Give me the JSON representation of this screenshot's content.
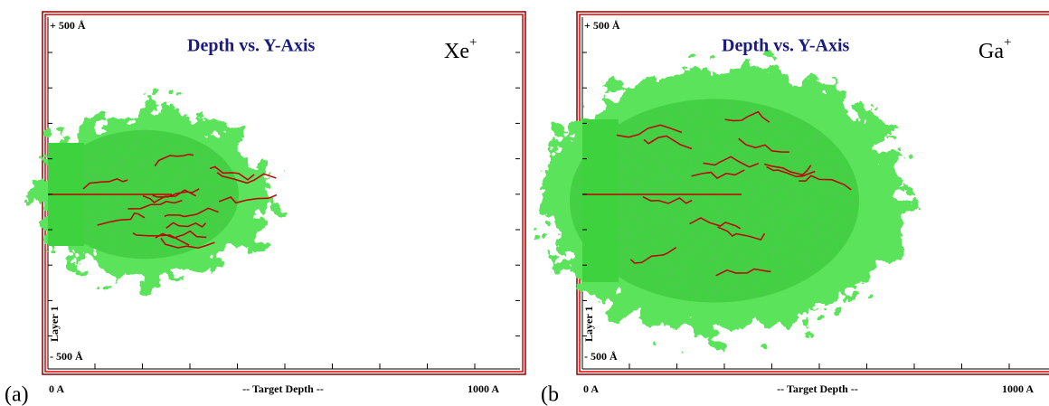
{
  "panels": [
    {
      "label": "(a)",
      "title": "Depth vs. Y-Axis",
      "ion": "Xe",
      "ion_charge": "+",
      "y_top": "+ 500 Å",
      "y_bottom": "- 500 Å",
      "layer": "Layer 1",
      "x_start": "0 A",
      "x_axis": "-- Target Depth --",
      "x_end": "1000 A"
    },
    {
      "label": "(b",
      "title": "Depth vs. Y-Axis",
      "ion": "Ga",
      "ion_charge": "+",
      "y_top": "+ 500 Å",
      "y_bottom": "- 500 Å",
      "layer": "Layer 1",
      "x_start": "0 A",
      "x_axis": "-- Target Depth --",
      "x_end": "1000 A"
    }
  ]
}
